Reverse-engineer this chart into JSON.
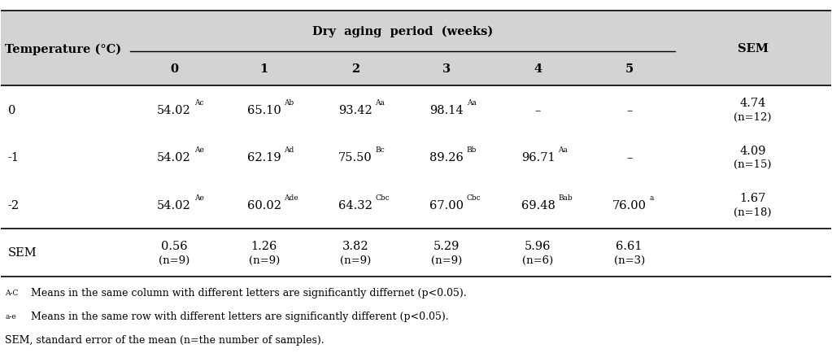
{
  "title": "Dry  aging  period  (weeks)",
  "col_header_left": "Temperature (°C)",
  "col_header_right": "SEM",
  "week_labels": [
    "0",
    "1",
    "2",
    "3",
    "4",
    "5"
  ],
  "cell_data": [
    [
      [
        "54.02",
        "Ac"
      ],
      [
        "65.10",
        "Ab"
      ],
      [
        "93.42",
        "Aa"
      ],
      [
        "98.14",
        "Aa"
      ],
      [
        "-",
        ""
      ],
      [
        "-",
        ""
      ]
    ],
    [
      [
        "54.02",
        "Ae"
      ],
      [
        "62.19",
        "Ad"
      ],
      [
        "75.50",
        "Bc"
      ],
      [
        "89.26",
        "Bb"
      ],
      [
        "96.71",
        "Aa"
      ],
      [
        "-",
        ""
      ]
    ],
    [
      [
        "54.02",
        "Ae"
      ],
      [
        "60.02",
        "Ade"
      ],
      [
        "64.32",
        "Cbc"
      ],
      [
        "67.00",
        "Cbc"
      ],
      [
        "69.48",
        "Bab"
      ],
      [
        "76.00",
        "a"
      ]
    ]
  ],
  "temp_labels": [
    "0",
    "-1",
    "-2"
  ],
  "sem_col": [
    "4.74\n(n=12)",
    "4.09\n(n=15)",
    "1.67\n(n=18)"
  ],
  "sem_row_label": "SEM",
  "sem_row_vals": [
    "0.56\n(n=9)",
    "1.26\n(n=9)",
    "3.82\n(n=9)",
    "5.29\n(n=9)",
    "5.96\n(n=6)",
    "6.61\n(n=3)"
  ],
  "footnote1_super": "A-C",
  "footnote1_text": "  Means in the same column with different letters are significantly differnet (p<0.05).",
  "footnote2_super": "a-e",
  "footnote2_text": "  Means in the same row with different letters are significantly different (p<0.05).",
  "footnote3": "SEM, standard error of the mean (n=the number of samples).",
  "header_bg": "#d3d3d3",
  "main_font_size": 10.5,
  "super_font_size": 6.5,
  "small_font_size": 9.5,
  "footnote_font_size": 9.0
}
